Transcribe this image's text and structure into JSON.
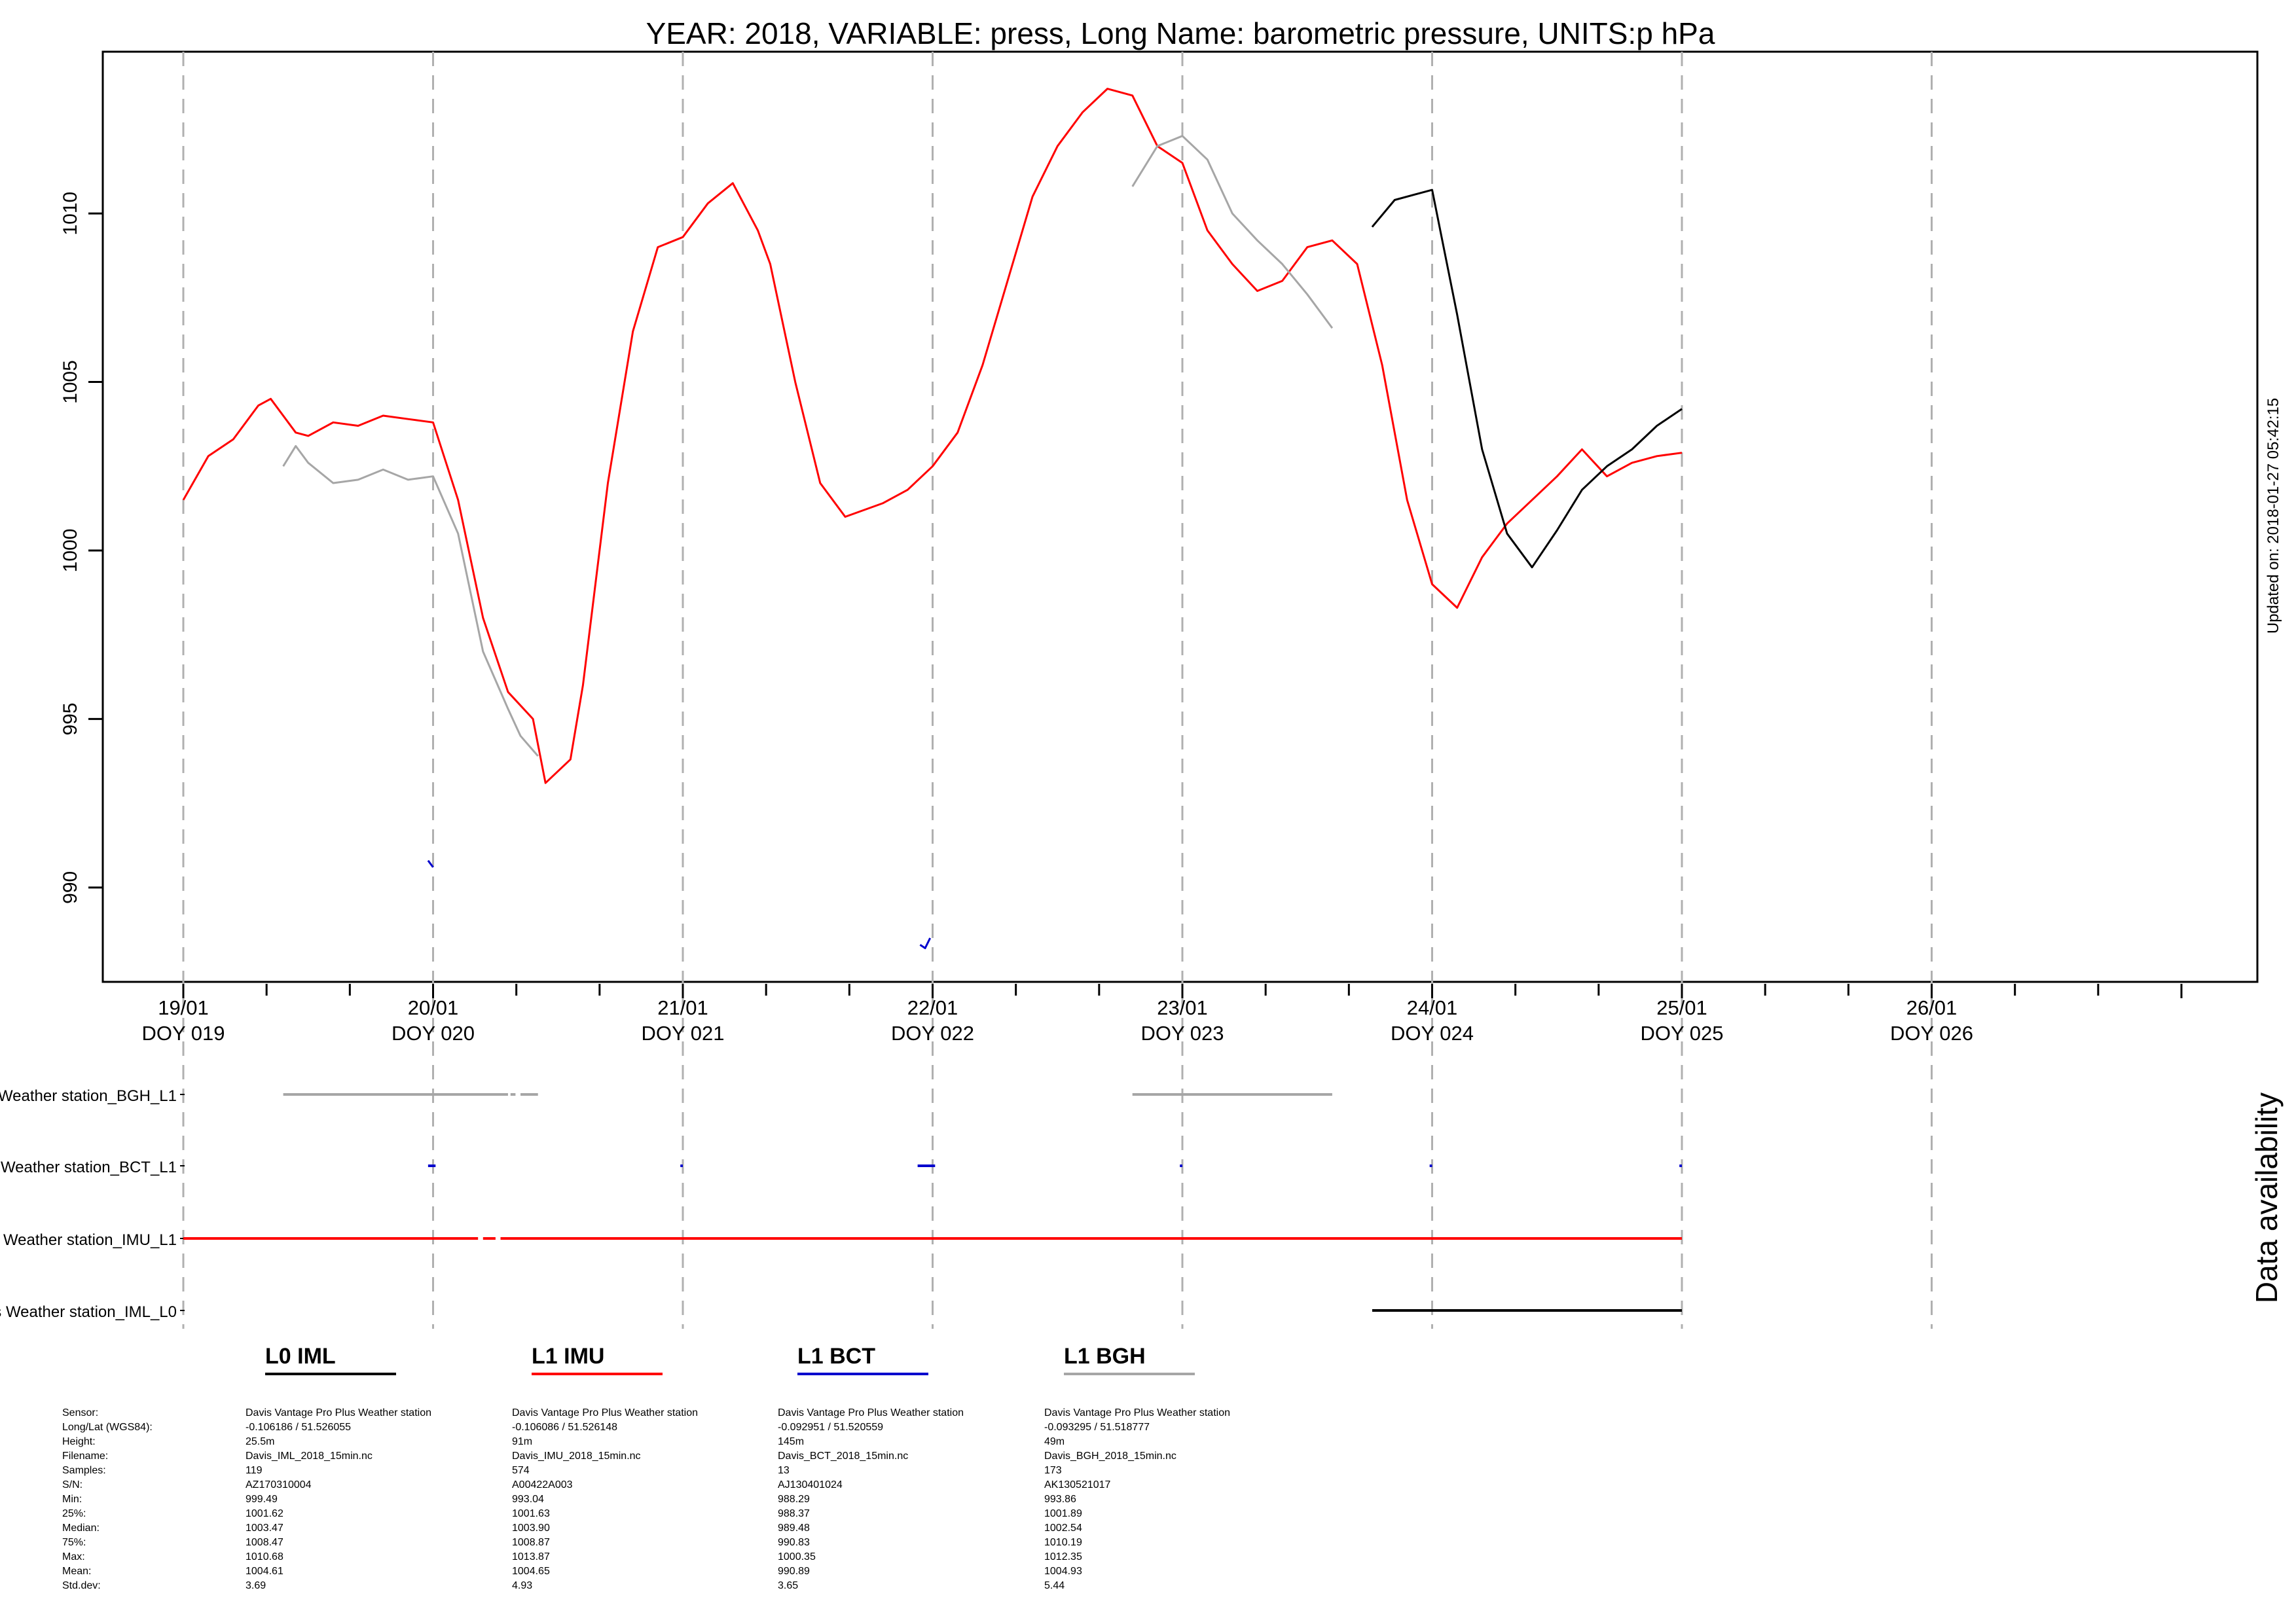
{
  "chart_data": {
    "type": "line",
    "title": "YEAR: 2018, VARIABLE: press, Long Name: barometric  pressure, UNITS:p hPa",
    "ylabel": "",
    "xlabel": "",
    "ylim": [
      987.2,
      1014.8
    ],
    "yticks": [
      990,
      995,
      1000,
      1005,
      1010
    ],
    "xlim": [
      18.68,
      27.3
    ],
    "xticks_major": [
      {
        "day": 19,
        "date": "19/01",
        "doy": "DOY 019"
      },
      {
        "day": 20,
        "date": "20/01",
        "doy": "DOY 020"
      },
      {
        "day": 21,
        "date": "21/01",
        "doy": "DOY 021"
      },
      {
        "day": 22,
        "date": "22/01",
        "doy": "DOY 022"
      },
      {
        "day": 23,
        "date": "23/01",
        "doy": "DOY 023"
      },
      {
        "day": 24,
        "date": "24/01",
        "doy": "DOY 024"
      },
      {
        "day": 25,
        "date": "25/01",
        "doy": "DOY 025"
      },
      {
        "day": 26,
        "date": "26/01",
        "doy": "DOY 026"
      }
    ],
    "grid": "vertical dashed at day boundaries",
    "series": [
      {
        "name": "L1 IMU",
        "color": "#ff0000",
        "x": [
          19.0,
          19.1,
          19.2,
          19.3,
          19.35,
          19.45,
          19.5,
          19.6,
          19.7,
          19.8,
          19.9,
          20.0,
          20.1,
          20.2,
          20.3,
          20.4,
          20.45,
          20.55,
          20.6,
          20.7,
          20.8,
          20.9,
          21.0,
          21.1,
          21.2,
          21.3,
          21.35,
          21.45,
          21.55,
          21.65,
          21.8,
          21.9,
          22.0,
          22.1,
          22.2,
          22.3,
          22.4,
          22.5,
          22.6,
          22.7,
          22.8,
          22.9,
          23.0,
          23.1,
          23.2,
          23.3,
          23.4,
          23.5,
          23.6,
          23.7,
          23.8,
          23.9,
          24.0,
          24.1,
          24.2,
          24.3,
          24.4,
          24.5,
          24.6,
          24.7,
          24.8,
          24.9,
          25.0
        ],
        "y": [
          1001.5,
          1002.8,
          1003.3,
          1004.3,
          1004.5,
          1003.5,
          1003.4,
          1003.8,
          1003.7,
          1004.0,
          1003.9,
          1003.8,
          1001.5,
          998.0,
          995.8,
          995.0,
          993.1,
          993.8,
          996.0,
          1002.0,
          1006.5,
          1009.0,
          1009.3,
          1010.3,
          1010.9,
          1009.5,
          1008.5,
          1005.0,
          1002.0,
          1001.0,
          1001.4,
          1001.8,
          1002.5,
          1003.5,
          1005.5,
          1008.0,
          1010.5,
          1012.0,
          1013.0,
          1013.7,
          1013.5,
          1012.0,
          1011.5,
          1009.5,
          1008.5,
          1007.7,
          1008.0,
          1009.0,
          1009.2,
          1008.5,
          1005.5,
          1001.5,
          999.0,
          998.3,
          999.8,
          1000.8,
          1001.5,
          1002.2,
          1003.0,
          1002.2,
          1002.6,
          1002.8,
          1002.9
        ],
        "data_x_range": [
          19.0,
          25.0
        ]
      },
      {
        "name": "L1 BGH",
        "color": "#a6a6a6",
        "segments": [
          {
            "x": [
              19.4,
              19.45,
              19.5,
              19.6,
              19.7,
              19.8,
              19.9,
              20.0,
              20.1,
              20.2,
              20.3,
              20.35,
              20.42
            ],
            "y": [
              1002.5,
              1003.1,
              1002.6,
              1002.0,
              1002.1,
              1002.4,
              1002.1,
              1002.2,
              1000.5,
              997.0,
              995.3,
              994.5,
              993.9
            ]
          },
          {
            "x": [
              22.8,
              22.9,
              23.0,
              23.1,
              23.2,
              23.3,
              23.4,
              23.5,
              23.6
            ],
            "y": [
              1010.8,
              1012.0,
              1012.3,
              1011.6,
              1010.0,
              1009.2,
              1008.5,
              1007.6,
              1006.6
            ]
          }
        ]
      },
      {
        "name": "L0 IML",
        "color": "#000000",
        "x": [
          23.76,
          23.85,
          23.95,
          24.0,
          24.1,
          24.2,
          24.3,
          24.4,
          24.5,
          24.6,
          24.7,
          24.8,
          24.9,
          25.0
        ],
        "y": [
          1009.6,
          1010.4,
          1010.6,
          1010.7,
          1007.0,
          1003.0,
          1000.5,
          999.5,
          1000.6,
          1001.8,
          1002.5,
          1003.0,
          1003.7,
          1004.2
        ]
      },
      {
        "name": "L1 BCT",
        "color": "#0000cd",
        "segments": [
          {
            "x": [
              19.98,
              20.0
            ],
            "y": [
              990.8,
              990.6
            ]
          },
          {
            "x": [
              21.95,
              21.97,
              21.99
            ],
            "y": [
              988.3,
              988.2,
              988.5
            ]
          }
        ]
      }
    ],
    "availability_panel": {
      "title": "Data availability",
      "rows": [
        {
          "label": "Weather station_BGH_L1",
          "color": "#a6a6a6",
          "ranges": [
            [
              19.4,
              20.3
            ],
            [
              20.31,
              20.33
            ],
            [
              20.35,
              20.42
            ],
            [
              22.8,
              23.6
            ]
          ]
        },
        {
          "label": "Weather station_BCT_L1",
          "color": "#0000cd",
          "ranges": [
            [
              19.98,
              20.01
            ],
            [
              20.99,
              21.0
            ],
            [
              21.94,
              22.01
            ],
            [
              22.99,
              23.0
            ],
            [
              23.99,
              24.0
            ],
            [
              24.99,
              25.0
            ]
          ]
        },
        {
          "label": "s Weather station_IMU_L1",
          "color": "#ff0000",
          "ranges": [
            [
              19.0,
              20.18
            ],
            [
              20.2,
              20.25
            ],
            [
              20.27,
              25.0
            ]
          ]
        },
        {
          "label": "s Weather station_IML_L0",
          "color": "#000000",
          "ranges": [
            [
              23.76,
              25.0
            ]
          ]
        }
      ]
    },
    "side_note": "Updated on: 2018-01-27 05:42:15"
  },
  "metadata_table": {
    "labels": [
      "Sensor:",
      "Long/Lat (WGS84):",
      "Height:",
      "Filename:",
      "Samples:",
      "S/N:",
      "Min:",
      "25%:",
      "Median:",
      "75%:",
      "Max:",
      "Mean:",
      "Std.dev:"
    ],
    "columns": [
      {
        "header": "L0 IML",
        "color": "#000000",
        "values": [
          "Davis Vantage Pro Plus Weather station",
          "-0.106186 / 51.526055",
          "25.5m",
          "Davis_IML_2018_15min.nc",
          "119",
          "AZ170310004",
          "999.49",
          "1001.62",
          "1003.47",
          "1008.47",
          "1010.68",
          "1004.61",
          "3.69"
        ]
      },
      {
        "header": "L1 IMU",
        "color": "#ff0000",
        "values": [
          "Davis Vantage Pro Plus Weather station",
          "-0.106086 / 51.526148",
          "91m",
          "Davis_IMU_2018_15min.nc",
          "574",
          "A00422A003",
          "993.04",
          "1001.63",
          "1003.90",
          "1008.87",
          "1013.87",
          "1004.65",
          "4.93"
        ]
      },
      {
        "header": "L1 BCT",
        "color": "#0000cd",
        "values": [
          "Davis Vantage Pro Plus Weather station",
          "-0.092951 / 51.520559",
          "145m",
          "Davis_BCT_2018_15min.nc",
          "13",
          "AJ130401024",
          "988.29",
          "988.37",
          "989.48",
          "990.83",
          "1000.35",
          "990.89",
          "3.65"
        ]
      },
      {
        "header": "L1 BGH",
        "color": "#a6a6a6",
        "values": [
          "Davis Vantage Pro Plus Weather station",
          "-0.093295 / 51.518777",
          "49m",
          "Davis_BGH_2018_15min.nc",
          "173",
          "AK130521017",
          "993.86",
          "1001.89",
          "1002.54",
          "1010.19",
          "1012.35",
          "1004.93",
          "5.44"
        ]
      }
    ]
  }
}
